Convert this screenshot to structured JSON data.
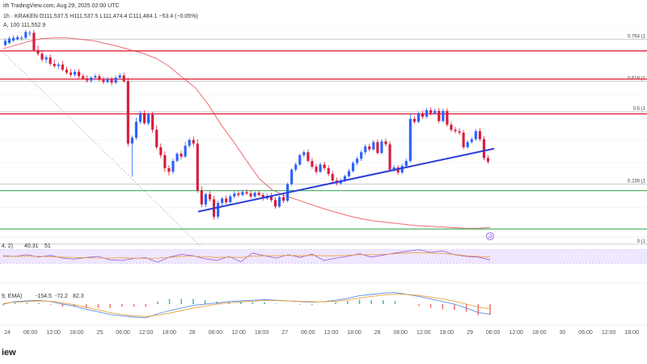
{
  "header": {
    "published": "ith TradingView.com, Aug 29, 2025 02:00 UTC",
    "symbol_line": "1h · KRAKEN  O111,537.5  H111,537.5  L111,474.4  C111,484.1  −53.4 (−0.05%)",
    "ma_line": "A, 100   111,552.9"
  },
  "colors": {
    "up": "#2962ff",
    "down": "#d81b3c",
    "ma": "#ef6b74",
    "resistance": "#e5384c",
    "support": "#52b56a",
    "trendline": "#2b3fd6",
    "rsi_band": "#efe6ff",
    "macd_line": "#e8a13a",
    "signal_line": "#5b8fe8"
  },
  "chart_data": [
    {
      "type": "candlestick",
      "ylim": [
        110350,
        113120
      ],
      "x_ticks": [
        "24",
        "06:00",
        "12:00",
        "18:00",
        "25",
        "06:00",
        "12:00",
        "18:00",
        "26",
        "06:00",
        "12:00",
        "18:00",
        "27",
        "06:00",
        "12:00",
        "18:00",
        "28",
        "06:00",
        "12:00",
        "18:00",
        "29",
        "06:00",
        "12:00",
        "18:00",
        "30",
        "06:00",
        "12:00",
        "18:00"
      ],
      "candles": [
        [
          112900,
          112960,
          112930,
          112990,
          112880
        ],
        [
          112930,
          112990,
          112960,
          113020,
          112910
        ],
        [
          112960,
          113000,
          112980,
          113030,
          112940
        ],
        [
          112980,
          113010,
          112990,
          113040,
          112960
        ],
        [
          112990,
          113000,
          113000,
          113030,
          112960
        ],
        [
          113000,
          113080,
          113060,
          113110,
          112980
        ],
        [
          113060,
          113070,
          113080,
          113100,
          113020
        ],
        [
          113070,
          112830,
          113090,
          113110,
          112810
        ],
        [
          112830,
          112780,
          112860,
          112890,
          112750
        ],
        [
          112780,
          112700,
          112800,
          112830,
          112670
        ],
        [
          112700,
          112730,
          112680,
          112760,
          112650
        ],
        [
          112730,
          112640,
          112740,
          112770,
          112610
        ],
        [
          112640,
          112610,
          112660,
          112700,
          112580
        ],
        [
          112610,
          112630,
          112600,
          112660,
          112570
        ],
        [
          112630,
          112560,
          112650,
          112680,
          112540
        ],
        [
          112560,
          112520,
          112580,
          112600,
          112490
        ],
        [
          112520,
          112490,
          112540,
          112570,
          112460
        ],
        [
          112490,
          112530,
          112480,
          112560,
          112460
        ],
        [
          112530,
          112470,
          112540,
          112570,
          112440
        ],
        [
          112470,
          112440,
          112480,
          112500,
          112420
        ],
        [
          112440,
          112410,
          112460,
          112480,
          112380
        ],
        [
          112410,
          112450,
          112400,
          112470,
          112380
        ],
        [
          112450,
          112470,
          112440,
          112500,
          112420
        ],
        [
          112470,
          112420,
          112480,
          112500,
          112400
        ],
        [
          112420,
          112390,
          112440,
          112460,
          112360
        ],
        [
          112390,
          112430,
          112380,
          112460,
          112370
        ],
        [
          112430,
          112380,
          112440,
          112460,
          112340
        ],
        [
          112380,
          112450,
          112370,
          112480,
          112360
        ],
        [
          112450,
          112480,
          112440,
          112510,
          112430
        ],
        [
          112480,
          112400,
          112490,
          112520,
          112380
        ],
        [
          112400,
          111540,
          112420,
          112450,
          111500
        ],
        [
          111540,
          111620,
          111520,
          111650,
          111080
        ],
        [
          111620,
          111840,
          111600,
          111900,
          111590
        ],
        [
          111840,
          111960,
          111820,
          111990,
          111810
        ],
        [
          111960,
          111820,
          111970,
          112000,
          111800
        ],
        [
          111820,
          111940,
          111800,
          111960,
          111790
        ],
        [
          111940,
          111730,
          111960,
          111980,
          111690
        ],
        [
          111730,
          111490,
          111750,
          111790,
          111460
        ],
        [
          111490,
          111380,
          111510,
          111540,
          111340
        ],
        [
          111380,
          111200,
          111400,
          111430,
          111150
        ],
        [
          111200,
          111150,
          111210,
          111240,
          111100
        ],
        [
          111150,
          111300,
          111130,
          111330,
          111120
        ],
        [
          111300,
          111400,
          111290,
          111420,
          111280
        ],
        [
          111400,
          111360,
          111410,
          111440,
          111320
        ],
        [
          111360,
          111510,
          111350,
          111560,
          111340
        ],
        [
          111510,
          111590,
          111500,
          111620,
          111480
        ],
        [
          111590,
          111540,
          111610,
          111640,
          111500
        ],
        [
          111540,
          110890,
          111560,
          111600,
          110860
        ],
        [
          110890,
          110700,
          110900,
          110950,
          110660
        ],
        [
          110700,
          110840,
          110690,
          110860,
          110660
        ],
        [
          110840,
          110770,
          110850,
          110880,
          110740
        ],
        [
          110770,
          110530,
          110790,
          110820,
          110490
        ],
        [
          110530,
          110720,
          110520,
          110750,
          110500
        ],
        [
          110720,
          110780,
          110700,
          110800,
          110680
        ],
        [
          110780,
          110730,
          110790,
          110820,
          110700
        ],
        [
          110730,
          110810,
          110720,
          110840,
          110700
        ],
        [
          110810,
          110850,
          110800,
          110880,
          110780
        ],
        [
          110850,
          110830,
          110860,
          110880,
          110800
        ],
        [
          110830,
          110870,
          110820,
          110900,
          110810
        ],
        [
          110870,
          110850,
          110880,
          110910,
          110830
        ],
        [
          110850,
          110810,
          110860,
          110890,
          110780
        ],
        [
          110810,
          110860,
          110800,
          110880,
          110790
        ],
        [
          110860,
          110830,
          110870,
          110890,
          110810
        ],
        [
          110830,
          110780,
          110840,
          110860,
          110750
        ],
        [
          110780,
          110820,
          110770,
          110850,
          110760
        ],
        [
          110820,
          110760,
          110830,
          110860,
          110730
        ],
        [
          110760,
          110670,
          110770,
          110800,
          110640
        ],
        [
          110670,
          110800,
          110660,
          110820,
          110650
        ],
        [
          110800,
          110750,
          110810,
          110840,
          110720
        ],
        [
          110750,
          110980,
          110740,
          111000,
          110730
        ],
        [
          110980,
          111180,
          110970,
          111200,
          110960
        ],
        [
          111180,
          111250,
          111170,
          111280,
          111150
        ],
        [
          111250,
          111380,
          111240,
          111400,
          111230
        ],
        [
          111380,
          111420,
          111370,
          111450,
          111350
        ],
        [
          111420,
          111300,
          111430,
          111460,
          111280
        ],
        [
          111300,
          111220,
          111310,
          111340,
          111190
        ],
        [
          111220,
          111150,
          111230,
          111260,
          111120
        ],
        [
          111150,
          111250,
          111140,
          111280,
          111130
        ],
        [
          111250,
          111200,
          111260,
          111290,
          111170
        ],
        [
          111200,
          111120,
          111210,
          111240,
          111090
        ],
        [
          111120,
          111030,
          111130,
          111160,
          111000
        ],
        [
          111030,
          110990,
          111040,
          111070,
          110960
        ],
        [
          110990,
          111030,
          110980,
          111060,
          110970
        ],
        [
          111030,
          111090,
          111020,
          111110,
          111010
        ],
        [
          111090,
          111160,
          111080,
          111190,
          111070
        ],
        [
          111160,
          111270,
          111150,
          111300,
          111140
        ],
        [
          111270,
          111330,
          111260,
          111360,
          111240
        ],
        [
          111330,
          111420,
          111320,
          111450,
          111300
        ],
        [
          111420,
          111500,
          111410,
          111530,
          111390
        ],
        [
          111500,
          111460,
          111510,
          111540,
          111430
        ],
        [
          111460,
          111560,
          111450,
          111590,
          111440
        ],
        [
          111560,
          111410,
          111570,
          111600,
          111390
        ],
        [
          111410,
          111570,
          111400,
          111600,
          111390
        ],
        [
          111570,
          111530,
          111580,
          111610,
          111500
        ],
        [
          111530,
          111180,
          111540,
          111570,
          111150
        ],
        [
          111180,
          111210,
          111170,
          111240,
          111150
        ],
        [
          111210,
          111140,
          111220,
          111240,
          111110
        ],
        [
          111140,
          111230,
          111130,
          111260,
          111120
        ],
        [
          111230,
          111300,
          111220,
          111330,
          111200
        ],
        [
          111300,
          111880,
          111290,
          111950,
          111280
        ],
        [
          111880,
          111840,
          111890,
          111920,
          111810
        ],
        [
          111840,
          111950,
          111830,
          111980,
          111820
        ],
        [
          111950,
          111910,
          111960,
          111990,
          111880
        ],
        [
          111910,
          112000,
          111900,
          112030,
          111890
        ],
        [
          112000,
          111960,
          112010,
          112040,
          111930
        ],
        [
          111960,
          111990,
          111950,
          112020,
          111940
        ],
        [
          111990,
          111850,
          112000,
          112030,
          111820
        ],
        [
          111850,
          111990,
          111840,
          112020,
          111830
        ],
        [
          111990,
          111800,
          112000,
          112030,
          111770
        ],
        [
          111800,
          111730,
          111810,
          111840,
          111700
        ],
        [
          111730,
          111710,
          111740,
          111770,
          111680
        ],
        [
          111710,
          111690,
          111720,
          111750,
          111660
        ],
        [
          111690,
          111490,
          111700,
          111730,
          111460
        ],
        [
          111490,
          111560,
          111480,
          111590,
          111470
        ],
        [
          111560,
          111600,
          111550,
          111630,
          111540
        ],
        [
          111600,
          111710,
          111590,
          111740,
          111580
        ],
        [
          111710,
          111600,
          111720,
          111750,
          111570
        ],
        [
          111600,
          111340,
          111610,
          111640,
          111310
        ],
        [
          111340,
          111290,
          111350,
          111380,
          111260
        ]
      ],
      "ma": [
        112850,
        112900,
        112950,
        112990,
        113000,
        113000,
        112980,
        112960,
        112920,
        112880,
        112830,
        112780,
        112710,
        112600,
        112450,
        112310,
        112080,
        111800,
        111560,
        111300,
        111050,
        110900,
        110820,
        110760,
        110700,
        110640,
        110590,
        110540,
        110500,
        110470,
        110450,
        110430,
        110410,
        110400,
        110390,
        110380,
        110370,
        110370,
        110380
      ],
      "fib_levels": [
        {
          "label": "0.764 (1",
          "value": 112980
        },
        {
          "label": "0.618 (1",
          "value": 112400
        },
        {
          "label": "0.5 (1",
          "value": 111980
        },
        {
          "label": "0.236 (1",
          "value": 110980
        },
        {
          "label": "0 (1",
          "value": 110150
        }
      ],
      "resistance_levels": [
        112820,
        112430,
        111950
      ],
      "support_levels": [
        110890,
        110360
      ],
      "trendline": [
        [
          110300,
          110520
        ],
        [
          117,
          111470
        ]
      ]
    },
    {
      "type": "line",
      "label": "4, 2)",
      "value_label": "40.31",
      "value_label_2": "51",
      "ylim": [
        0,
        100
      ],
      "band": [
        30,
        70
      ],
      "series": [
        {
          "values": [
            52,
            50,
            55,
            48,
            53,
            45,
            42,
            47,
            50,
            40,
            38,
            44,
            46,
            33,
            48,
            56,
            52,
            43,
            38,
            50,
            34,
            60,
            52,
            45,
            55,
            47,
            57,
            38,
            45,
            50,
            58,
            48,
            54,
            60,
            65,
            70,
            62,
            66,
            55,
            50,
            48,
            40
          ]
        },
        {
          "values": [
            50,
            50,
            51,
            50,
            49,
            48,
            47,
            46,
            45,
            45,
            46,
            45,
            44,
            45,
            47,
            50,
            51,
            49,
            47,
            48,
            47,
            51,
            52,
            52,
            53,
            52,
            53,
            52,
            52,
            53,
            55,
            55,
            56,
            58,
            60,
            61,
            60,
            58,
            56,
            52,
            50,
            48
          ]
        }
      ]
    },
    {
      "type": "line",
      "label": "9, EMA)",
      "value_label": "-154.5",
      "value_label_2": "-72.2",
      "value_label_3": "82.3",
      "ylim": [
        -250,
        250
      ],
      "series": [
        {
          "values": [
            0,
            40,
            50,
            60,
            40,
            0,
            -30,
            -80,
            -120,
            -160,
            -180,
            -200,
            -210,
            -150,
            -100,
            -60,
            -20,
            0,
            20,
            40,
            50,
            60,
            70,
            60,
            50,
            40,
            30,
            40,
            60,
            90,
            130,
            150,
            170,
            180,
            150,
            120,
            80,
            40,
            0,
            -60,
            -130,
            -155
          ]
        },
        {
          "values": [
            10,
            30,
            40,
            50,
            45,
            20,
            -10,
            -50,
            -90,
            -130,
            -160,
            -180,
            -190,
            -170,
            -140,
            -100,
            -60,
            -30,
            0,
            20,
            35,
            45,
            55,
            55,
            50,
            45,
            38,
            38,
            45,
            65,
            95,
            120,
            140,
            155,
            150,
            135,
            110,
            80,
            45,
            0,
            -45,
            -72
          ]
        }
      ]
    }
  ],
  "watermark": "iew"
}
